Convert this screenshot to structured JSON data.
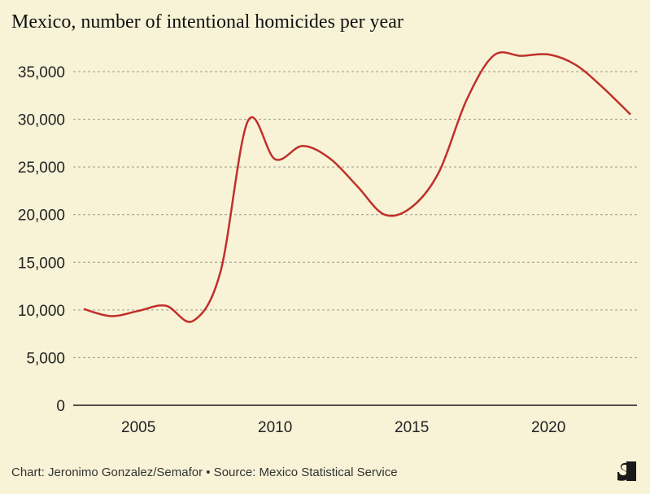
{
  "chart_data": {
    "type": "line",
    "title": "Mexico, number of intentional homicides per year",
    "xlabel": "",
    "ylabel": "",
    "x": [
      2003,
      2004,
      2005,
      2006,
      2007,
      2008,
      2009,
      2010,
      2011,
      2012,
      2013,
      2014,
      2015,
      2016,
      2017,
      2018,
      2019,
      2020,
      2021,
      2022,
      2023
    ],
    "series": [
      {
        "values": [
          10100,
          9350,
          9900,
          10450,
          8850,
          14000,
          29800,
          25800,
          27200,
          25900,
          23000,
          20000,
          20800,
          24500,
          32000,
          36700,
          36650,
          36800,
          35700,
          33300,
          30500
        ],
        "color": "#c0302a"
      }
    ],
    "xticks": [
      2005,
      2010,
      2015,
      2020
    ],
    "xtick_labels": [
      "2005",
      "2010",
      "2015",
      "2020"
    ],
    "yticks": [
      0,
      5000,
      10000,
      15000,
      20000,
      25000,
      30000,
      35000
    ],
    "ytick_labels": [
      "0",
      "5,000",
      "10,000",
      "15,000",
      "20,000",
      "25,000",
      "30,000",
      "35,000"
    ],
    "xlim": [
      2003,
      2023
    ],
    "ylim": [
      0,
      35000
    ],
    "grid": "horizontal dashed"
  },
  "footer": {
    "credit": "Chart: Jeronimo Gonzalez/Semafor • Source: Mexico Statistical Service",
    "logo_text": "S"
  }
}
